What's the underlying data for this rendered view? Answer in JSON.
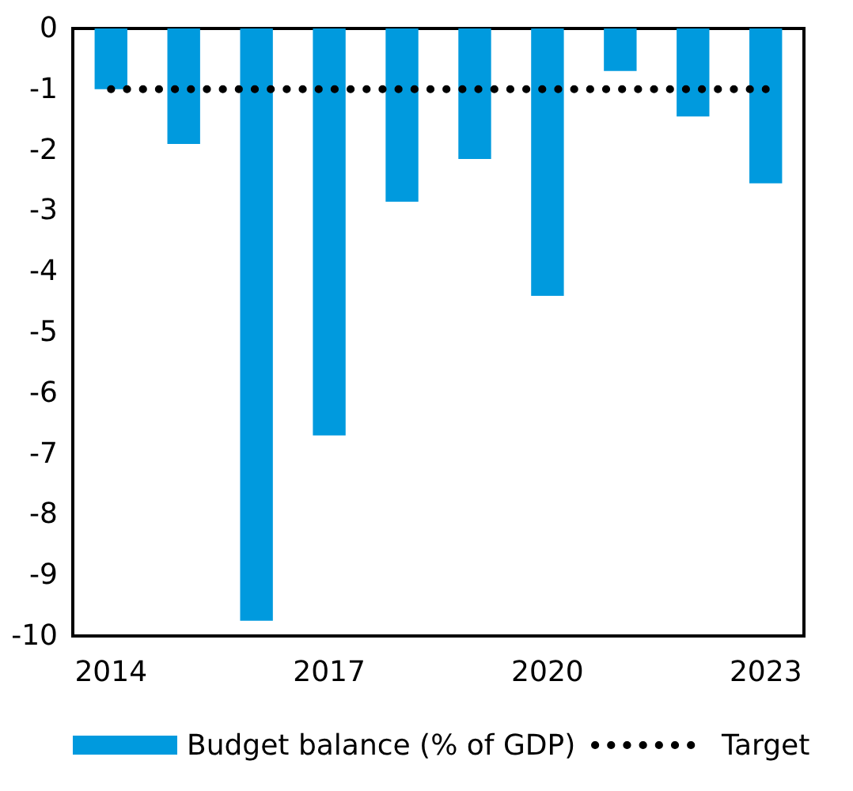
{
  "chart_data": {
    "type": "bar",
    "categories": [
      "2014",
      null,
      null,
      "2017",
      null,
      null,
      "2020",
      null,
      null,
      "2023"
    ],
    "ylim": [
      -10,
      0
    ],
    "yticks": [
      0,
      -1,
      -2,
      -3,
      -4,
      -5,
      -6,
      -7,
      -8,
      -9,
      -10
    ],
    "grid": false,
    "legend": "bottom",
    "series": [
      {
        "name": "Budget balance (% of GDP)",
        "color": "#009ade",
        "values": [
          -1.0,
          -1.9,
          -9.75,
          -6.7,
          -2.85,
          -2.15,
          -4.4,
          -0.7,
          -1.45,
          -2.55
        ]
      },
      {
        "name": "Target",
        "type": "line",
        "color": "#000000",
        "line_style": "dotted",
        "marker": "none",
        "values": [
          -1,
          -1,
          -1,
          -1,
          -1,
          -1,
          -1,
          -1,
          -1,
          -1
        ]
      }
    ]
  }
}
